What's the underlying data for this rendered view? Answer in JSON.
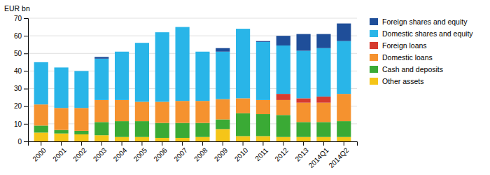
{
  "chart_data": {
    "type": "bar",
    "stacked": true,
    "grid": true,
    "legend": "right",
    "ylabel": "EUR bn",
    "categories": [
      "2000",
      "2001",
      "2002",
      "2003",
      "2004",
      "2005",
      "2006",
      "2007",
      "2008",
      "2009",
      "2010",
      "2011",
      "2012",
      "2013",
      "2014Q1",
      "2014Q2"
    ],
    "series": [
      {
        "name": "Other assets",
        "color": "#f5c518",
        "values": [
          5.0,
          4.5,
          4.0,
          3.5,
          2.5,
          2.5,
          2.0,
          2.0,
          2.5,
          7.0,
          3.0,
          3.0,
          2.5,
          2.5,
          2.5,
          2.5
        ]
      },
      {
        "name": "Cash and deposits",
        "color": "#3aaa35",
        "values": [
          4.0,
          2.0,
          2.0,
          7.5,
          9.0,
          9.0,
          8.5,
          8.5,
          8.0,
          5.5,
          13.0,
          12.5,
          12.5,
          8.5,
          8.5,
          9.0
        ]
      },
      {
        "name": "Domestic loans",
        "color": "#f5922f",
        "values": [
          12.0,
          12.5,
          13.0,
          12.5,
          12.0,
          11.0,
          12.0,
          12.5,
          12.5,
          11.5,
          8.5,
          8.0,
          8.5,
          11.0,
          11.0,
          15.5
        ]
      },
      {
        "name": "Foreign loans",
        "color": "#d63b2f",
        "values": [
          0.0,
          0.0,
          0.0,
          0.0,
          0.0,
          0.0,
          0.0,
          0.0,
          0.0,
          0.0,
          0.0,
          0.0,
          3.5,
          2.5,
          3.5,
          0.0
        ]
      },
      {
        "name": "Domestic shares and equity",
        "color": "#29b5e8",
        "values": [
          24.0,
          23.0,
          21.0,
          23.5,
          27.5,
          33.5,
          39.5,
          42.0,
          28.0,
          27.0,
          39.5,
          33.0,
          27.5,
          27.0,
          27.5,
          30.0
        ]
      },
      {
        "name": "Foreign shares and equity",
        "color": "#1f4e99",
        "values": [
          0.0,
          0.0,
          0.0,
          1.0,
          0.0,
          0.0,
          0.0,
          0.0,
          0.0,
          2.0,
          0.0,
          0.5,
          5.5,
          9.5,
          8.0,
          10.0
        ]
      }
    ],
    "ylim": [
      0,
      70
    ],
    "yticks": [
      0,
      10,
      20,
      30,
      40,
      50,
      60,
      70
    ]
  }
}
